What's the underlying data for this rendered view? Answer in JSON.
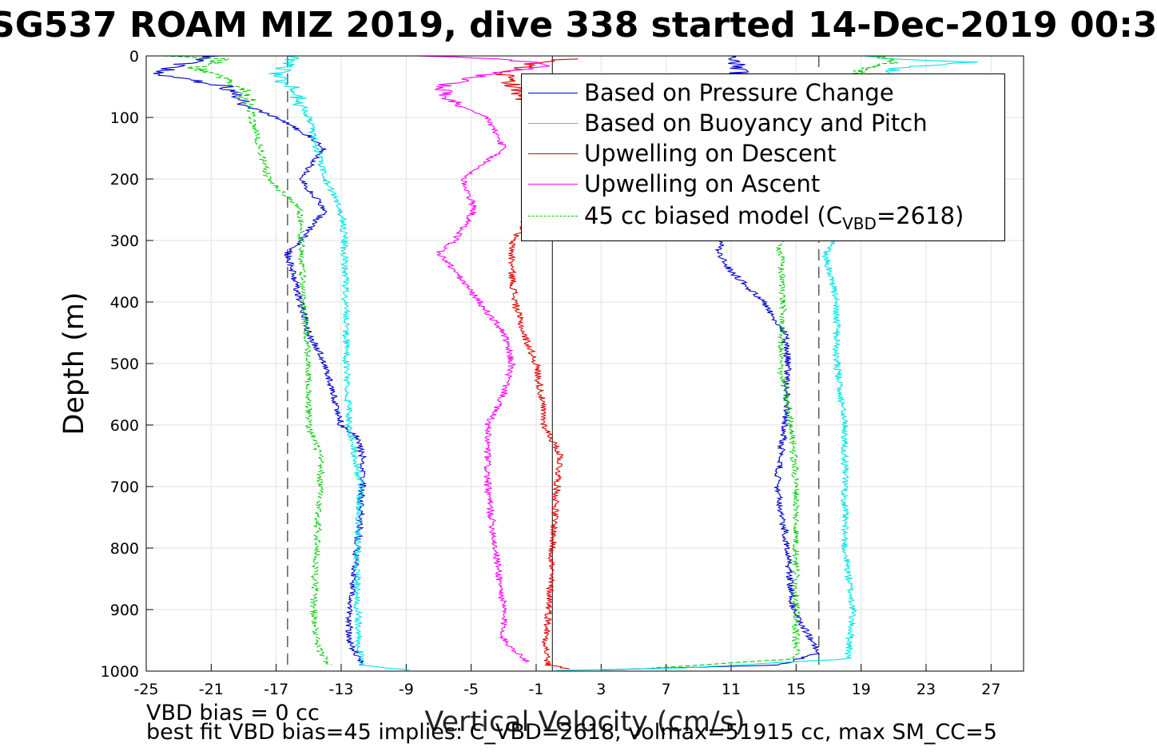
{
  "title": "SG537 ROAM MIZ 2019, dive 338 started 14-Dec-2019 00:3",
  "notes": {
    "line1": "VBD bias = 0 cc",
    "line2": "best fit VBD bias=45 implies: C_VBD=2618, volmax=51915 cc, max SM_CC=5"
  },
  "legend": {
    "items": [
      {
        "label": "Based on Pressure Change",
        "color": "#0000cc",
        "dash": false
      },
      {
        "label": "Based on Buoyancy and Pitch",
        "color": "#00e5e5",
        "dash": false
      },
      {
        "label": "Upwelling on Descent",
        "color": "#e00000",
        "dash": false
      },
      {
        "label": "Upwelling on Ascent",
        "color": "#ff00ff",
        "dash": false
      }
    ],
    "model": {
      "prefix": "45 cc biased model (C",
      "sub": "VBD",
      "suffix": "=2618)",
      "color": "#00cc00"
    }
  },
  "chart_data": {
    "type": "line",
    "title": "SG537 ROAM MIZ 2019, dive 338 started 14-Dec-2019 00:3",
    "xlabel": "Vertical Velocity (cm/s)",
    "ylabel": "Depth (m)",
    "xlim": [
      -25,
      29
    ],
    "ylim": [
      0,
      1000
    ],
    "y_reversed": true,
    "grid": true,
    "legend_position": "top-right",
    "xticks": [
      -25,
      -21,
      -17,
      -13,
      -9,
      -5,
      -1,
      3,
      7,
      11,
      15,
      19,
      23,
      27
    ],
    "yticks": [
      0,
      100,
      200,
      300,
      400,
      500,
      600,
      700,
      800,
      900,
      1000
    ],
    "reference_lines": [
      {
        "x": -16.3,
        "style": "dashed"
      },
      {
        "x": 0.0,
        "style": "solid"
      },
      {
        "x": 16.4,
        "style": "dashed"
      }
    ],
    "series": [
      {
        "name": "Based on Pressure Change",
        "color": "#0000cc",
        "descent": [
          [
            0,
            -21
          ],
          [
            15,
            -23
          ],
          [
            30,
            -24.5
          ],
          [
            50,
            -20
          ],
          [
            80,
            -19
          ],
          [
            100,
            -17
          ],
          [
            130,
            -15
          ],
          [
            150,
            -14
          ],
          [
            200,
            -15.5
          ],
          [
            250,
            -14
          ],
          [
            300,
            -15.5
          ],
          [
            320,
            -16.3
          ],
          [
            400,
            -15.5
          ],
          [
            450,
            -15
          ],
          [
            500,
            -14
          ],
          [
            550,
            -13.5
          ],
          [
            600,
            -13
          ],
          [
            620,
            -12
          ],
          [
            650,
            -11.7
          ],
          [
            700,
            -11.7
          ],
          [
            800,
            -12
          ],
          [
            900,
            -12.5
          ],
          [
            950,
            -12.5
          ],
          [
            990,
            -11.7
          ]
        ],
        "ascent": [
          [
            0,
            11
          ],
          [
            20,
            11.5
          ],
          [
            300,
            10.5
          ],
          [
            320,
            10.2
          ],
          [
            350,
            11
          ],
          [
            400,
            13
          ],
          [
            450,
            14.3
          ],
          [
            500,
            14.5
          ],
          [
            600,
            14.3
          ],
          [
            700,
            13.8
          ],
          [
            800,
            14.5
          ],
          [
            900,
            14.8
          ],
          [
            970,
            16.4
          ],
          [
            990,
            14
          ],
          [
            998,
            3
          ]
        ]
      },
      {
        "name": "Based on Buoyancy and Pitch",
        "color": "#00e5e5",
        "descent": [
          [
            0,
            -16
          ],
          [
            20,
            -16.5
          ],
          [
            30,
            -17
          ],
          [
            60,
            -15.8
          ],
          [
            100,
            -15
          ],
          [
            200,
            -14
          ],
          [
            250,
            -13
          ],
          [
            300,
            -12.8
          ],
          [
            400,
            -12.7
          ],
          [
            500,
            -12.7
          ],
          [
            600,
            -12.5
          ],
          [
            700,
            -11.8
          ],
          [
            800,
            -12
          ],
          [
            900,
            -12
          ],
          [
            990,
            -11.8
          ],
          [
            998,
            -9
          ]
        ],
        "ascent": [
          [
            0,
            19
          ],
          [
            5,
            20.5
          ],
          [
            10,
            26
          ],
          [
            20,
            21
          ],
          [
            300,
            17.5
          ],
          [
            320,
            16.8
          ],
          [
            400,
            17.5
          ],
          [
            500,
            17.5
          ],
          [
            600,
            18
          ],
          [
            700,
            18
          ],
          [
            800,
            18
          ],
          [
            900,
            18.5
          ],
          [
            980,
            18.2
          ],
          [
            995,
            8
          ],
          [
            999,
            0
          ]
        ]
      },
      {
        "name": "Upwelling on Descent",
        "color": "#e00000",
        "descent": [
          [
            5,
            1
          ],
          [
            10,
            -1
          ],
          [
            30,
            -3
          ],
          [
            60,
            -2
          ],
          [
            100,
            -1.5
          ],
          [
            150,
            -0.5
          ],
          [
            200,
            -1
          ],
          [
            280,
            -1.8
          ],
          [
            300,
            -2.5
          ],
          [
            350,
            -2.5
          ],
          [
            400,
            -2.3
          ],
          [
            450,
            -1.8
          ],
          [
            500,
            -1
          ],
          [
            550,
            -0.7
          ],
          [
            600,
            -0.5
          ],
          [
            650,
            0.5
          ],
          [
            700,
            0.3
          ],
          [
            800,
            0
          ],
          [
            900,
            -0.2
          ],
          [
            950,
            -0.4
          ],
          [
            990,
            -0.3
          ],
          [
            996,
            1
          ]
        ]
      },
      {
        "name": "Upwelling on Ascent",
        "color": "#ff00ff",
        "descent": [
          [
            0,
            -8
          ],
          [
            5,
            -3
          ],
          [
            15,
            0
          ],
          [
            30,
            -4
          ],
          [
            50,
            -7
          ],
          [
            80,
            -6
          ],
          [
            100,
            -4
          ],
          [
            150,
            -3
          ],
          [
            200,
            -5.5
          ],
          [
            250,
            -4.8
          ],
          [
            300,
            -6
          ],
          [
            320,
            -7
          ],
          [
            350,
            -6
          ],
          [
            400,
            -4.5
          ],
          [
            450,
            -3
          ],
          [
            500,
            -2.5
          ],
          [
            550,
            -3
          ],
          [
            600,
            -4
          ],
          [
            700,
            -4
          ],
          [
            800,
            -3.5
          ],
          [
            900,
            -3
          ],
          [
            950,
            -3
          ],
          [
            985,
            -1.5
          ]
        ]
      },
      {
        "name": "45 cc biased model (C_VBD=2618)",
        "color": "#00cc00",
        "dashed": true,
        "descent": [
          [
            0,
            -24
          ],
          [
            5,
            -20
          ],
          [
            20,
            -22
          ],
          [
            50,
            -19
          ],
          [
            100,
            -18.5
          ],
          [
            150,
            -18
          ],
          [
            200,
            -17.5
          ],
          [
            250,
            -15.5
          ],
          [
            300,
            -15.5
          ],
          [
            400,
            -15.3
          ],
          [
            500,
            -15
          ],
          [
            600,
            -15
          ],
          [
            650,
            -14.3
          ],
          [
            700,
            -14.3
          ],
          [
            800,
            -14.5
          ],
          [
            900,
            -14.7
          ],
          [
            960,
            -14.5
          ],
          [
            990,
            -13.7
          ]
        ],
        "ascent": [
          [
            0,
            20
          ],
          [
            10,
            21
          ],
          [
            20,
            19
          ],
          [
            300,
            14
          ],
          [
            400,
            14.2
          ],
          [
            500,
            14
          ],
          [
            600,
            14.7
          ],
          [
            700,
            15
          ],
          [
            800,
            15
          ],
          [
            900,
            15
          ],
          [
            980,
            15
          ],
          [
            995,
            6
          ]
        ]
      }
    ]
  }
}
